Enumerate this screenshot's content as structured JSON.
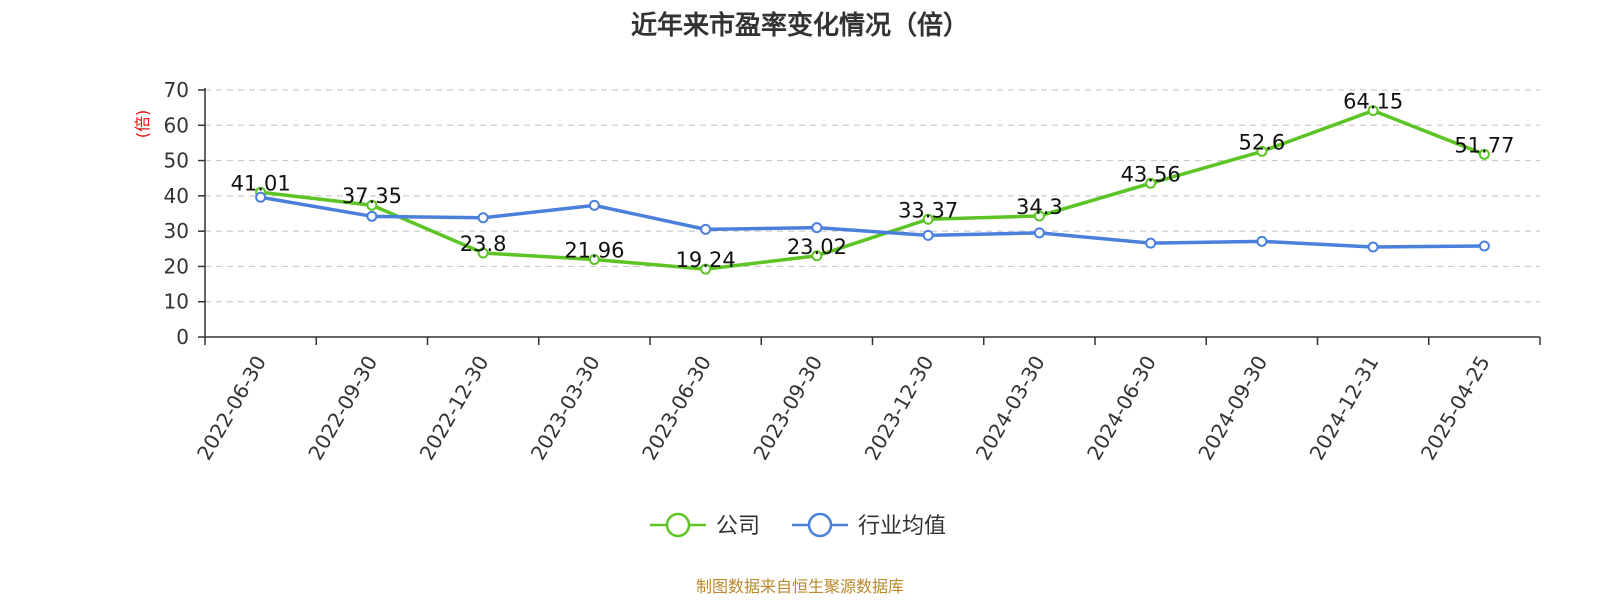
{
  "chart_data": {
    "type": "line",
    "title": "近年来市盈率变化情况（倍）",
    "ylabel": "(倍)",
    "xlabel": "",
    "ylim": [
      0,
      70
    ],
    "yticks": [
      0,
      10,
      20,
      30,
      40,
      50,
      60,
      70
    ],
    "grid": true,
    "legend_position": "bottom-center",
    "categories": [
      "2022-06-30",
      "2022-09-30",
      "2022-12-30",
      "2023-03-30",
      "2023-06-30",
      "2023-09-30",
      "2023-12-30",
      "2024-03-30",
      "2024-06-30",
      "2024-09-30",
      "2024-12-31",
      "2025-04-25"
    ],
    "series": [
      {
        "name": "公司",
        "color": "#5cc424",
        "values": [
          41.01,
          37.35,
          23.8,
          21.96,
          19.24,
          23.02,
          33.37,
          34.3,
          43.56,
          52.6,
          64.15,
          51.77
        ],
        "labels": [
          "41.01",
          "37.35",
          "23.8",
          "21.96",
          "19.24",
          "23.02",
          "33.37",
          "34.3",
          "43.56",
          "52.6",
          "64.15",
          "51.77"
        ]
      },
      {
        "name": "行业均值",
        "color": "#4a80dc",
        "values": [
          39.6,
          34.2,
          33.8,
          37.3,
          30.5,
          31.0,
          28.8,
          29.5,
          26.6,
          27.1,
          25.5,
          25.8
        ]
      }
    ],
    "source": "制图数据来自恒生聚源数据库"
  },
  "colors": {
    "ylabel": "#e01010",
    "source": "#b8892c",
    "grid": "#cccccc",
    "axis": "#333333"
  }
}
